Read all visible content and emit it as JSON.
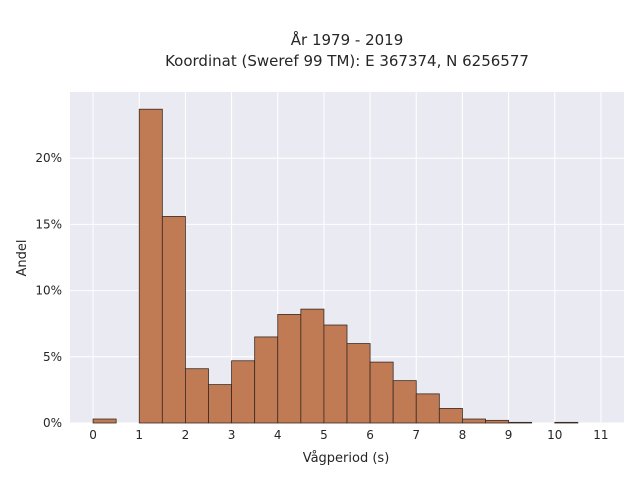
{
  "chart_data": {
    "type": "bar",
    "title_line1": "År 1979 - 2019",
    "title_line2": "Koordinat (Sweref 99 TM): E 367374, N 6256577",
    "xlabel": "Vågperiod (s)",
    "ylabel": "Andel",
    "bin_width": 0.5,
    "x": [
      0,
      0.5,
      1,
      1.5,
      2,
      2.5,
      3,
      3.5,
      4,
      4.5,
      5,
      5.5,
      6,
      6.5,
      7,
      7.5,
      8,
      8.5,
      9,
      9.5,
      10,
      10.5
    ],
    "values": [
      0.3,
      0,
      23.7,
      15.6,
      4.1,
      2.9,
      4.7,
      6.5,
      8.2,
      8.6,
      7.4,
      6.0,
      4.6,
      3.2,
      2.2,
      1.1,
      0.3,
      0.2,
      0.05,
      0,
      0.05,
      0
    ],
    "xlim": [
      -0.5,
      11.5
    ],
    "ylim": [
      0,
      25
    ],
    "xticks": [
      0,
      1,
      2,
      3,
      4,
      5,
      6,
      7,
      8,
      9,
      10,
      11
    ],
    "xtick_labels": [
      "0",
      "1",
      "2",
      "3",
      "4",
      "5",
      "6",
      "7",
      "8",
      "9",
      "10",
      "11"
    ],
    "yticks": [
      0,
      5,
      10,
      15,
      20
    ],
    "ytick_labels": [
      "0%",
      "5%",
      "10%",
      "15%",
      "20%"
    ],
    "grid": true,
    "colors": {
      "bar_fill": "#c07b55",
      "bar_edge": "#3a2a20",
      "plot_background": "#eaeaf2",
      "grid": "#ffffff",
      "text": "#262626"
    }
  }
}
